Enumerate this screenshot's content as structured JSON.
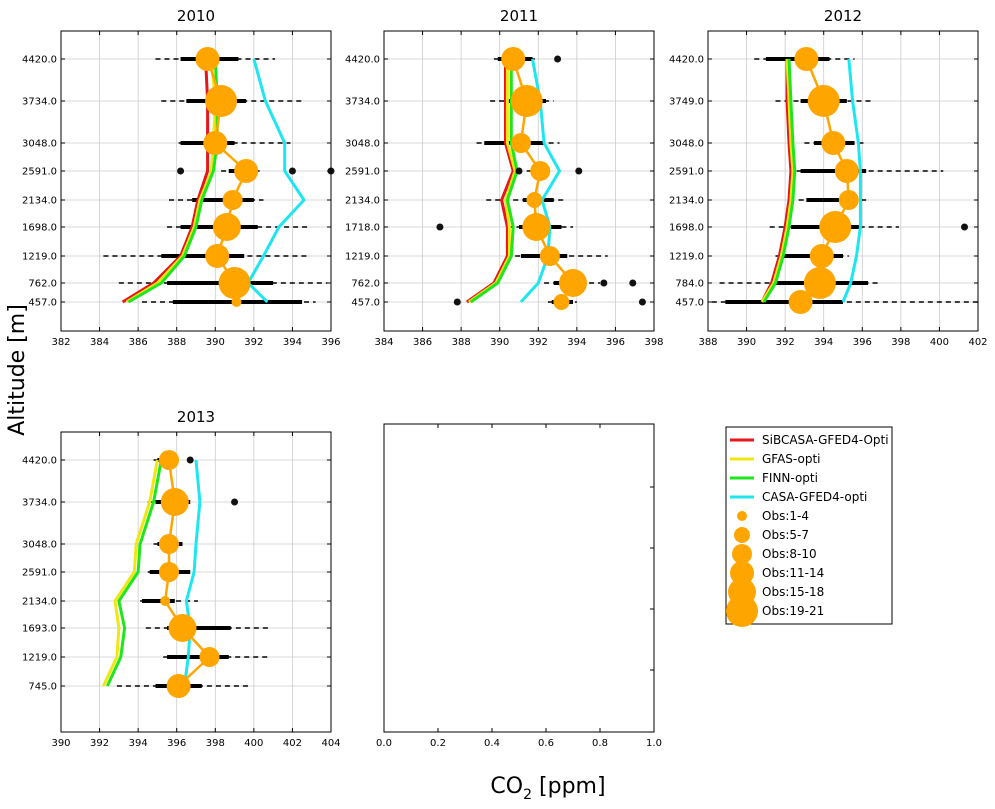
{
  "figure": {
    "ylabel": "Altitude [m]",
    "xlabel_main": "CO",
    "xlabel_sub": "2",
    "xlabel_unit": " [ppm]"
  },
  "legend": {
    "placement": "right of bottom row",
    "items": [
      {
        "kind": "line",
        "label": "SiBCASA-GFED4-Opti",
        "color": "#e8141e"
      },
      {
        "kind": "line",
        "label": "GFAS-opti",
        "color": "#f0e614"
      },
      {
        "kind": "line",
        "label": "FINN-opti",
        "color": "#1ee61e"
      },
      {
        "kind": "line",
        "label": "CASA-GFED4-opti",
        "color": "#1ee6f0"
      },
      {
        "kind": "marker",
        "label": "Obs:1-4",
        "color": "#ffa500"
      },
      {
        "kind": "marker",
        "label": "Obs:5-7",
        "color": "#ffa500"
      },
      {
        "kind": "marker",
        "label": "Obs:8-10",
        "color": "#ffa500"
      },
      {
        "kind": "marker",
        "label": "Obs:11-14",
        "color": "#ffa500"
      },
      {
        "kind": "marker",
        "label": "Obs:15-18",
        "color": "#ffa500"
      },
      {
        "kind": "marker",
        "label": "Obs:19-21",
        "color": "#ffa500"
      }
    ]
  },
  "colors": {
    "sibcasa": "#e8141e",
    "gfas": "#f0e614",
    "finn": "#1ee61e",
    "casa": "#1ee6f0",
    "obs": "#ffa500",
    "grid": "#cccccc"
  },
  "chart_data": [
    {
      "type": "line",
      "title": "2010",
      "xlim": [
        382,
        396
      ],
      "xticks": [
        "382",
        "384",
        "386",
        "388",
        "390",
        "392",
        "394",
        "396"
      ],
      "ytick_labels": [
        "457.0",
        "762.0",
        "1219.0",
        "1698.0",
        "2134.0",
        "2591.0",
        "3048.0",
        "3734.0",
        "4420.0"
      ],
      "obs": [
        {
          "x": 391.1,
          "obs_class": 1,
          "err": [
            387.8,
            394.5
          ],
          "dash": [
            386.2,
            395.2
          ]
        },
        {
          "x": 391.0,
          "obs_class": 6,
          "err": [
            387.5,
            393.0
          ],
          "dash": [
            385.0,
            395.8
          ]
        },
        {
          "x": 390.1,
          "obs_class": 4,
          "err": [
            387.2,
            391.5
          ],
          "dash": [
            384.2,
            394.8
          ]
        },
        {
          "x": 390.6,
          "obs_class": 5,
          "err": [
            388.2,
            392.2
          ],
          "dash": [
            387.5,
            394.8
          ]
        },
        {
          "x": 390.9,
          "obs_class": 3,
          "err": [
            388.8,
            392.0
          ],
          "dash": [
            387.6,
            392.5
          ]
        },
        {
          "x": 391.6,
          "obs_class": 4,
          "err": [
            390.7,
            392.1
          ],
          "dash": [
            390.3,
            392.3
          ]
        },
        {
          "x": 390.0,
          "obs_class": 4,
          "err": [
            388.2,
            391.0
          ],
          "dash": [
            388.1,
            393.9
          ]
        },
        {
          "x": 390.3,
          "obs_class": 6,
          "err": [
            388.5,
            391.6
          ],
          "dash": [
            387.2,
            394.6
          ]
        },
        {
          "x": 389.6,
          "obs_class": 4,
          "err": [
            388.2,
            391.2
          ],
          "dash": [
            386.9,
            393.1
          ]
        }
      ],
      "outliers": [
        {
          "x": 388.2,
          "level": 5
        },
        {
          "x": 394.0,
          "level": 5
        },
        {
          "x": 396.0,
          "level": 5
        }
      ],
      "series": [
        {
          "key": "sibcasa",
          "values": [
            385.2,
            386.8,
            388.2,
            388.8,
            389.1,
            389.6,
            389.6,
            389.6,
            389.5
          ]
        },
        {
          "key": "gfas",
          "values": [
            385.4,
            387.0,
            388.3,
            388.9,
            389.2,
            389.8,
            389.9,
            390.0,
            389.8
          ]
        },
        {
          "key": "finn",
          "values": [
            385.5,
            387.2,
            388.4,
            389.0,
            389.3,
            389.9,
            390.1,
            390.1,
            390.0
          ]
        },
        {
          "key": "casa",
          "values": [
            392.7,
            391.7,
            392.5,
            393.3,
            394.6,
            393.6,
            393.6,
            392.6,
            392.0
          ]
        }
      ]
    },
    {
      "type": "line",
      "title": "2011",
      "xlim": [
        384,
        398
      ],
      "xticks": [
        "384",
        "386",
        "388",
        "390",
        "392",
        "394",
        "396",
        "398"
      ],
      "ytick_labels": [
        "457.0",
        "762.0",
        "1219.0",
        "1718.0",
        "2134.0",
        "2591.0",
        "3048.0",
        "3734.0",
        "4420.0"
      ],
      "obs": [
        {
          "x": 393.2,
          "obs_class": 2,
          "err": [
            392.7,
            393.8
          ],
          "dash": [
            392.5,
            394.0
          ]
        },
        {
          "x": 393.8,
          "obs_class": 5,
          "err": [
            392.8,
            394.4
          ],
          "dash": [
            392.3,
            395.2
          ]
        },
        {
          "x": 392.6,
          "obs_class": 3,
          "err": [
            391.1,
            393.5
          ],
          "dash": [
            390.8,
            395.6
          ]
        },
        {
          "x": 391.9,
          "obs_class": 5,
          "err": [
            391.0,
            393.2
          ],
          "dash": [
            390.4,
            393.8
          ]
        },
        {
          "x": 391.8,
          "obs_class": 2,
          "err": [
            391.2,
            392.8
          ],
          "dash": [
            389.3,
            393.3
          ]
        },
        {
          "x": 392.1,
          "obs_class": 3,
          "err": [
            391.6,
            392.6
          ],
          "dash": [
            391.4,
            392.8
          ]
        },
        {
          "x": 391.1,
          "obs_class": 3,
          "err": [
            389.2,
            392.3
          ],
          "dash": [
            388.8,
            393.1
          ]
        },
        {
          "x": 391.4,
          "obs_class": 6,
          "err": [
            390.3,
            392.4
          ],
          "dash": [
            389.5,
            392.8
          ]
        },
        {
          "x": 390.7,
          "obs_class": 4,
          "err": [
            389.9,
            391.7
          ],
          "dash": [
            389.7,
            391.9
          ]
        }
      ],
      "outliers": [
        {
          "x": 387.8,
          "level": 0
        },
        {
          "x": 397.4,
          "level": 0
        },
        {
          "x": 395.4,
          "level": 1
        },
        {
          "x": 396.9,
          "level": 1
        },
        {
          "x": 386.9,
          "level": 3
        },
        {
          "x": 391.0,
          "level": 5
        },
        {
          "x": 394.1,
          "level": 5
        },
        {
          "x": 393.0,
          "level": 8
        }
      ],
      "series": [
        {
          "key": "sibcasa",
          "values": [
            388.3,
            389.7,
            390.4,
            390.4,
            390.1,
            390.7,
            390.3,
            390.3,
            390.3
          ]
        },
        {
          "key": "gfas",
          "values": [
            388.4,
            389.8,
            390.5,
            390.5,
            390.3,
            390.8,
            390.4,
            390.4,
            390.4
          ]
        },
        {
          "key": "finn",
          "values": [
            388.5,
            389.9,
            390.6,
            390.7,
            390.4,
            390.9,
            390.6,
            390.6,
            390.6
          ]
        },
        {
          "key": "casa",
          "values": [
            391.1,
            392.0,
            392.5,
            392.6,
            392.2,
            393.1,
            392.3,
            392.1,
            391.7
          ]
        }
      ]
    },
    {
      "type": "line",
      "title": "2012",
      "xlim": [
        388,
        402
      ],
      "xticks": [
        "388",
        "390",
        "392",
        "394",
        "396",
        "398",
        "400",
        "402"
      ],
      "ytick_labels": [
        "457.0",
        "784.0",
        "1219.0",
        "1698.0",
        "2134.0",
        "2591.0",
        "3048.0",
        "3749.0",
        "4420.0"
      ],
      "obs": [
        {
          "x": 392.8,
          "obs_class": 4,
          "err": [
            388.9,
            395.0
          ],
          "dash": [
            388.2,
            402.0
          ]
        },
        {
          "x": 393.8,
          "obs_class": 6,
          "err": [
            391.3,
            396.3
          ],
          "dash": [
            388.6,
            397.0
          ]
        },
        {
          "x": 393.9,
          "obs_class": 4,
          "err": [
            391.9,
            395.0
          ],
          "dash": [
            391.5,
            395.3
          ]
        },
        {
          "x": 394.6,
          "obs_class": 6,
          "err": [
            392.3,
            395.9
          ],
          "dash": [
            391.2,
            397.9
          ]
        },
        {
          "x": 395.3,
          "obs_class": 3,
          "err": [
            393.1,
            395.6
          ],
          "dash": [
            392.7,
            396.2
          ]
        },
        {
          "x": 395.2,
          "obs_class": 4,
          "err": [
            392.8,
            396.2
          ],
          "dash": [
            392.6,
            400.2
          ]
        },
        {
          "x": 394.5,
          "obs_class": 4,
          "err": [
            393.5,
            395.6
          ],
          "dash": [
            393.0,
            396.2
          ]
        },
        {
          "x": 394.0,
          "obs_class": 6,
          "err": [
            392.8,
            395.2
          ],
          "dash": [
            391.5,
            396.5
          ]
        },
        {
          "x": 393.1,
          "obs_class": 4,
          "err": [
            391.0,
            394.3
          ],
          "dash": [
            390.4,
            395.6
          ]
        }
      ],
      "outliers": [
        {
          "x": 401.3,
          "level": 3
        }
      ],
      "series": [
        {
          "key": "sibcasa",
          "values": [
            390.8,
            391.3,
            391.7,
            392.0,
            392.2,
            392.3,
            392.2,
            392.1,
            392.1
          ]
        },
        {
          "key": "gfas",
          "values": [
            390.8,
            391.4,
            391.8,
            392.1,
            392.3,
            392.4,
            392.3,
            392.2,
            392.1
          ]
        },
        {
          "key": "finn",
          "values": [
            390.9,
            391.5,
            391.9,
            392.2,
            392.4,
            392.5,
            392.4,
            392.3,
            392.2
          ]
        },
        {
          "key": "casa",
          "values": [
            395.0,
            395.4,
            395.7,
            395.9,
            395.9,
            395.9,
            395.8,
            395.5,
            395.3
          ]
        }
      ]
    },
    {
      "type": "line",
      "title": "2013",
      "xlim": [
        390,
        404
      ],
      "xticks": [
        "390",
        "392",
        "394",
        "396",
        "398",
        "400",
        "402",
        "404"
      ],
      "ytick_labels": [
        "745.0",
        "1219.0",
        "1693.0",
        "2134.0",
        "2591.0",
        "3048.0",
        "3734.0",
        "4420.0"
      ],
      "obs": [
        {
          "x": 396.1,
          "obs_class": 4,
          "err": [
            394.9,
            397.3
          ],
          "dash": [
            392.9,
            399.8
          ]
        },
        {
          "x": 397.7,
          "obs_class": 3,
          "err": [
            395.5,
            398.7
          ],
          "dash": [
            395.3,
            400.7
          ]
        },
        {
          "x": 396.3,
          "obs_class": 5,
          "err": [
            395.5,
            398.8
          ],
          "dash": [
            394.4,
            400.8
          ]
        },
        {
          "x": 395.4,
          "obs_class": 1,
          "err": [
            394.2,
            395.9
          ],
          "dash": [
            394.1,
            397.1
          ]
        },
        {
          "x": 395.6,
          "obs_class": 3,
          "err": [
            394.6,
            396.7
          ],
          "dash": [
            394.5,
            396.8
          ]
        },
        {
          "x": 395.6,
          "obs_class": 3,
          "err": [
            395.0,
            396.3
          ],
          "dash": [
            394.8,
            396.3
          ]
        },
        {
          "x": 395.9,
          "obs_class": 5,
          "err": [
            394.9,
            396.7
          ],
          "dash": [
            394.5,
            396.6
          ]
        },
        {
          "x": 395.6,
          "obs_class": 3,
          "err": [
            395.0,
            396.0
          ],
          "dash": [
            394.8,
            396.2
          ]
        }
      ],
      "outliers": [
        {
          "x": 399.0,
          "level": 6
        },
        {
          "x": 396.7,
          "level": 7
        }
      ],
      "series": [
        {
          "key": "gfas",
          "values": [
            392.2,
            392.9,
            393.0,
            392.8,
            393.8,
            393.9,
            394.6,
            395.0
          ]
        },
        {
          "key": "finn",
          "values": [
            392.4,
            393.1,
            393.3,
            393.0,
            394.0,
            394.1,
            394.8,
            395.2
          ]
        },
        {
          "key": "casa",
          "values": [
            396.4,
            396.6,
            396.7,
            396.5,
            396.9,
            397.0,
            397.2,
            397.0
          ]
        }
      ]
    },
    {
      "type": "line",
      "title": "",
      "xlim": [
        0.0,
        1.0
      ],
      "xticks": [
        "0.0",
        "0.2",
        "0.4",
        "0.6",
        "0.8",
        "1.0"
      ],
      "ytick_labels": [],
      "obs": [],
      "outliers": [],
      "series": []
    }
  ]
}
